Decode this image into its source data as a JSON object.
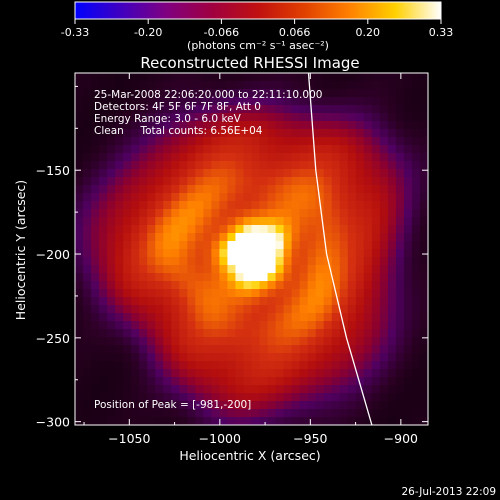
{
  "colorbar": {
    "ticks": [
      "-0.33",
      "-0.20",
      "-0.066",
      "0.066",
      "0.20",
      "0.33"
    ],
    "unit_label": "(photons cm⁻² s⁻¹ asec⁻²)",
    "stops": [
      "#0000ff",
      "#4000c0",
      "#800080",
      "#a00040",
      "#c01010",
      "#e04000",
      "#ff8000",
      "#ffd000",
      "#ffffff"
    ]
  },
  "footer": {
    "date": "26-Jul-2013 22:09"
  },
  "chart_data": {
    "type": "heatmap",
    "title": "Reconstructed RHESSI Image",
    "xlabel": "Heliocentric X (arcsec)",
    "ylabel": "Heliocentric Y (arcsec)",
    "xlim": [
      -1080,
      -885
    ],
    "ylim": [
      -302,
      -92
    ],
    "x_ticks": [
      -1050,
      -1000,
      -950,
      -900
    ],
    "y_ticks": [
      -300,
      -250,
      -200,
      -150
    ],
    "x_tick_labels": [
      "−1050",
      "−1000",
      "−950",
      "−900"
    ],
    "y_tick_labels": [
      "−300",
      "−250",
      "−200",
      "−150"
    ],
    "annotations": [
      "25-Mar-2008 22:06:20.000 to 22:11:10.000",
      "Detectors: 4F 5F 6F 7F 8F, Att 0",
      "Energy Range: 3.0 - 6.0 keV",
      "Clean     Total counts: 6.56E+04"
    ],
    "peak_label": "Position of Peak = [-981,-200]",
    "peak": {
      "x": -981,
      "y": -200
    },
    "limb_points": [
      [
        -951,
        -92
      ],
      [
        -947,
        -150
      ],
      [
        -941,
        -200
      ],
      [
        -930,
        -250
      ],
      [
        -916,
        -302
      ]
    ],
    "color_stops": [
      "#000000",
      "#2a0022",
      "#500060",
      "#8a0030",
      "#b40e0e",
      "#d43010",
      "#ff8000",
      "#ffd000",
      "#ffffff"
    ]
  }
}
